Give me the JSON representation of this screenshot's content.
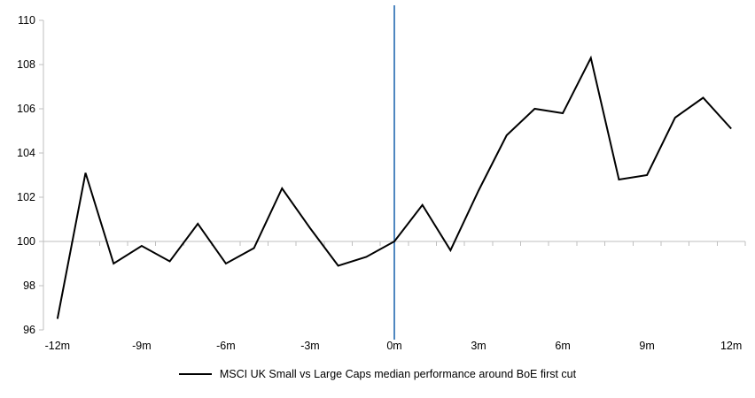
{
  "chart_data": {
    "type": "line",
    "title": "",
    "xlabel": "",
    "ylabel": "",
    "legend": "MSCI UK Small vs Large Caps median performance around BoE first cut",
    "legend_position": "bottom",
    "xlim": [
      -12.5,
      12.5
    ],
    "ylim": [
      96,
      110
    ],
    "y_ticks": [
      96,
      98,
      100,
      102,
      104,
      106,
      108,
      110
    ],
    "x_tick_positions": [
      -12,
      -9,
      -6,
      -3,
      0,
      3,
      6,
      9,
      12
    ],
    "x_tick_labels": [
      "-12m",
      "-9m",
      "-6m",
      "-3m",
      "0m",
      "3m",
      "6m",
      "9m",
      "12m"
    ],
    "x_minor_ticks": {
      "start": -12.5,
      "end": 12.5,
      "step": 1
    },
    "grid": false,
    "series": [
      {
        "name": "MSCI UK Small vs Large Caps median performance around BoE first cut",
        "color": "#000000",
        "x": [
          -12,
          -11,
          -10,
          -9,
          -8,
          -7,
          -6,
          -5,
          -4,
          -3,
          -2,
          -1,
          0,
          1,
          2,
          3,
          4,
          5,
          6,
          7,
          8,
          9,
          10,
          11,
          12
        ],
        "values": [
          96.5,
          103.1,
          99.0,
          99.8,
          99.1,
          100.8,
          99.0,
          99.7,
          102.4,
          100.6,
          98.9,
          99.3,
          100.0,
          101.65,
          99.6,
          102.3,
          104.8,
          106.0,
          105.8,
          108.3,
          102.8,
          103.0,
          105.6,
          106.5,
          105.1
        ]
      }
    ],
    "reference_lines": {
      "vertical": {
        "x": 0,
        "color": "#4f87c0"
      },
      "horizontal": {
        "y": 100,
        "color": "#bfbfbf"
      }
    },
    "colors": {
      "axis": "#bfbfbf",
      "text": "#000000",
      "series": "#000000",
      "event_line": "#4f87c0"
    }
  }
}
